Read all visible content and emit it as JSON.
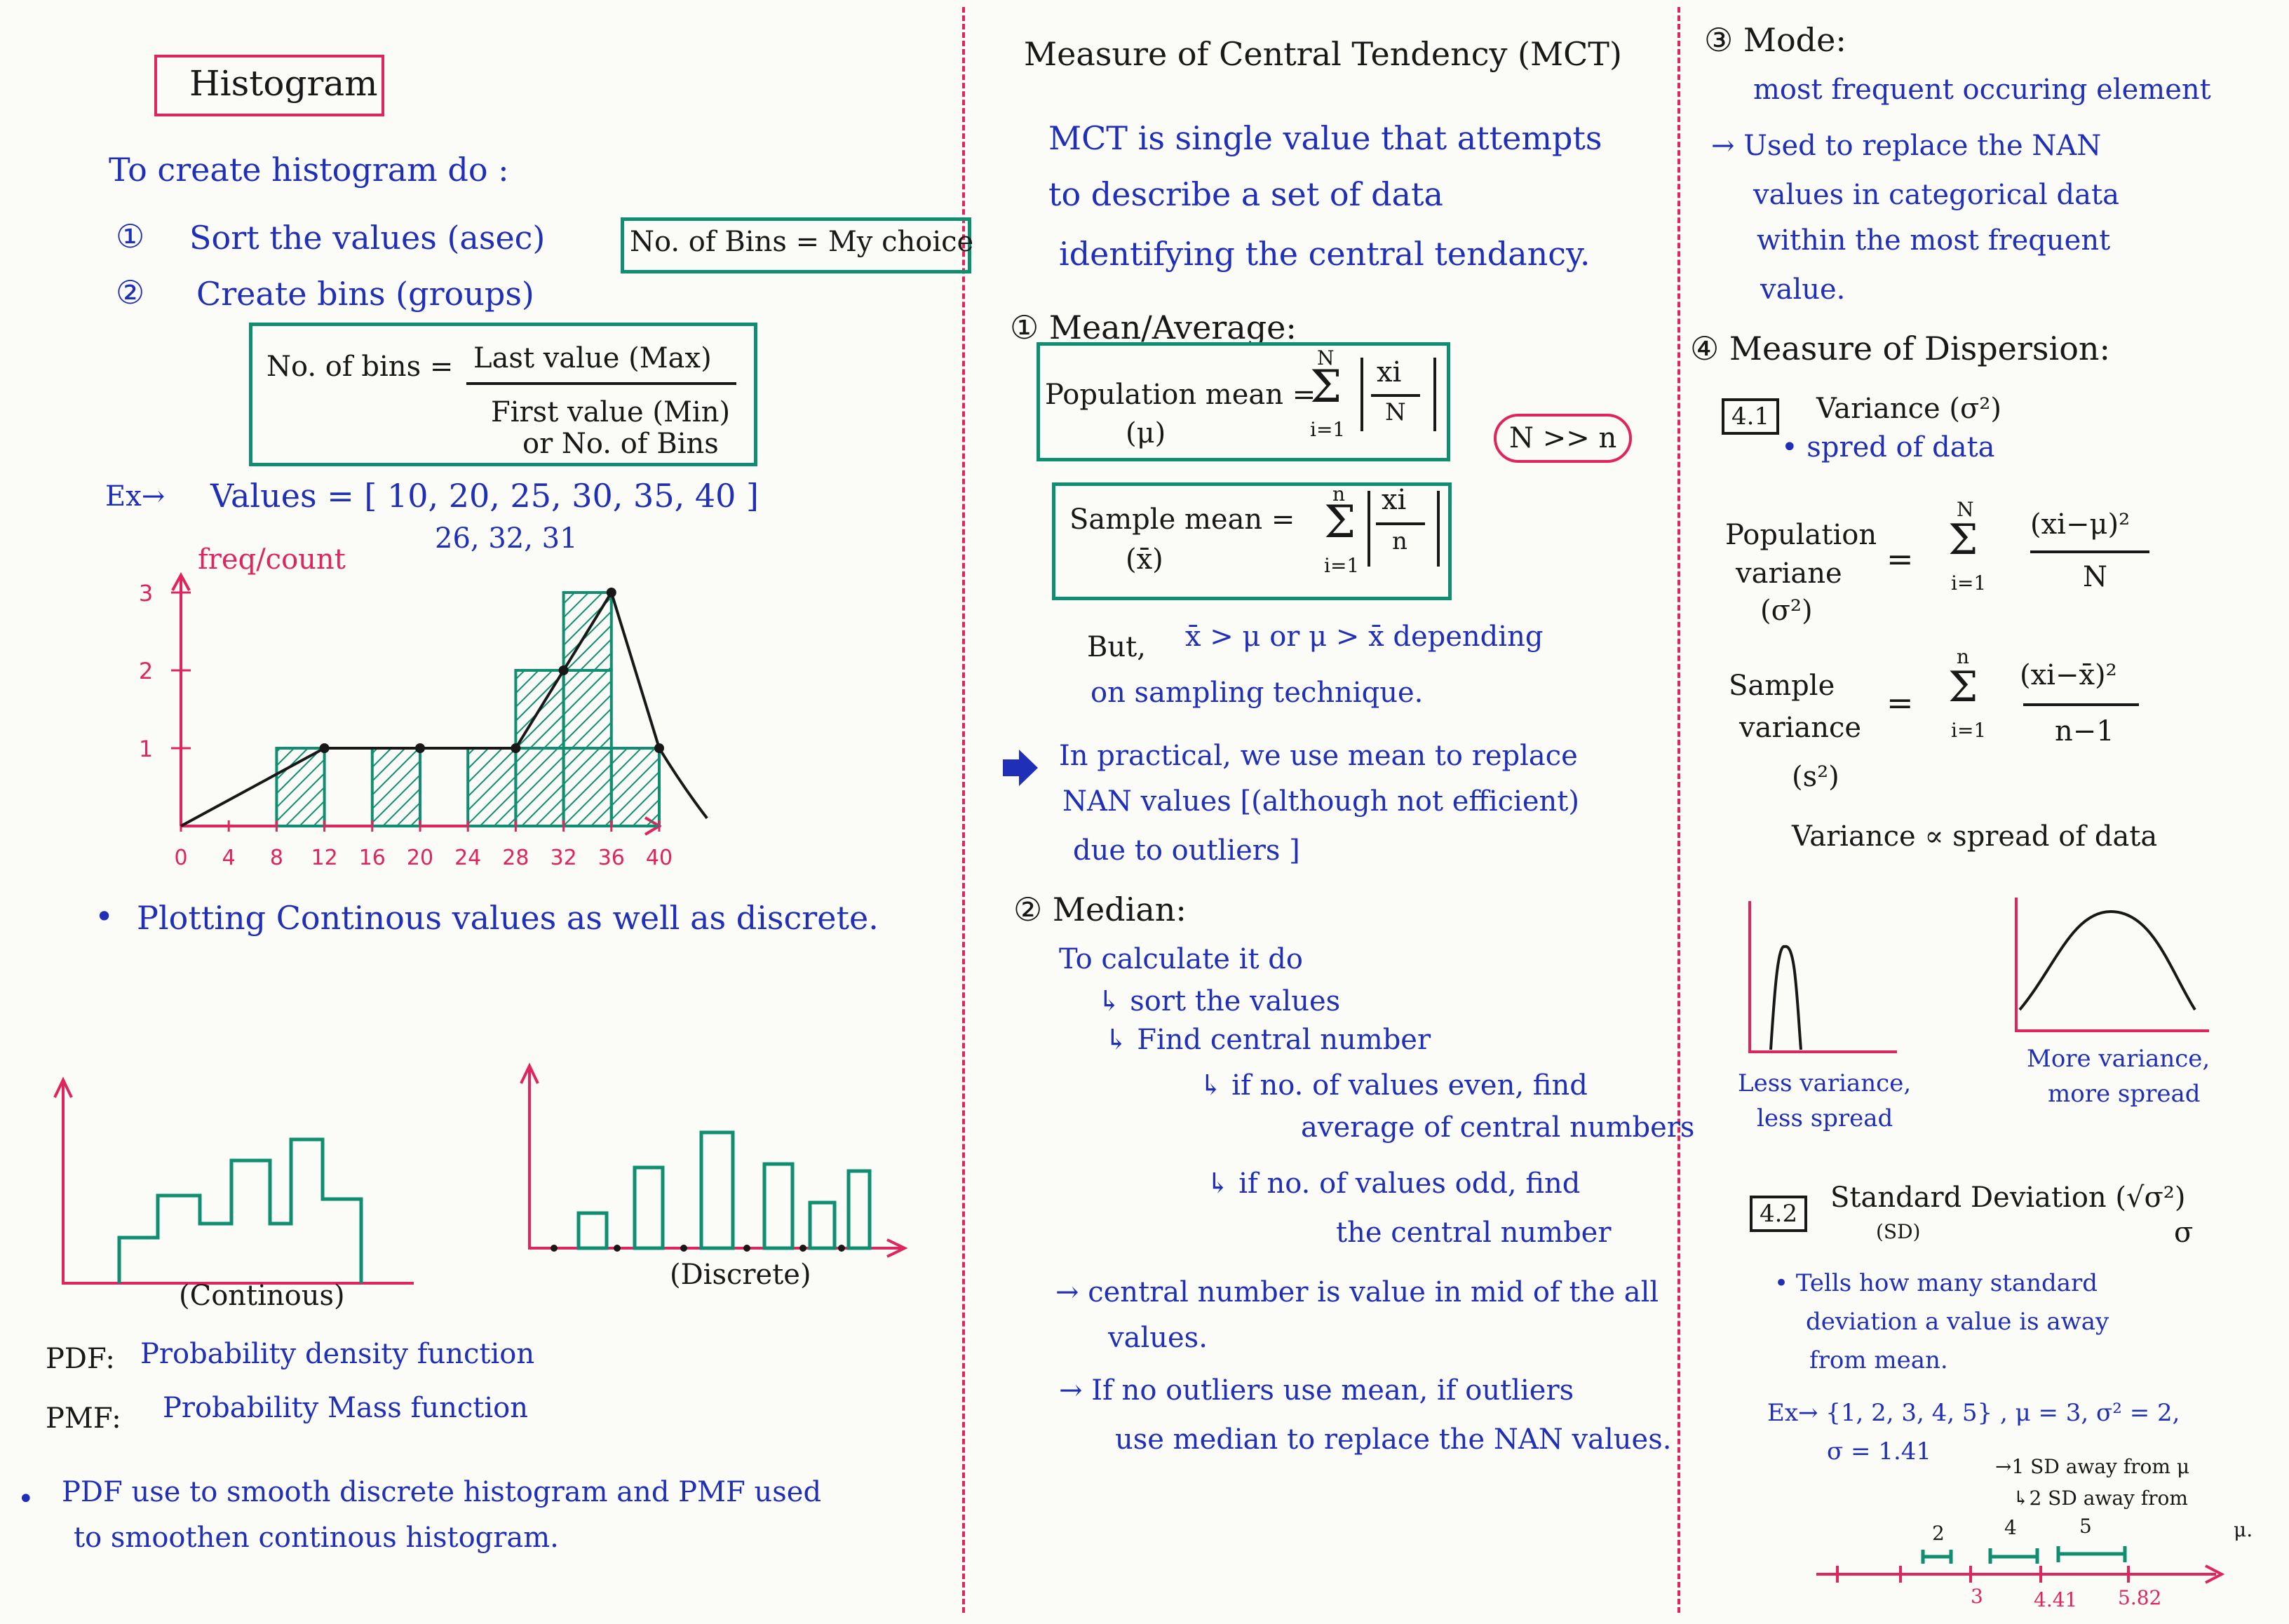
{
  "left": {
    "title": "Histogram",
    "intro": "To create histogram do :",
    "step1_num": "①",
    "step1": "Sort the values (asec)",
    "step2_num": "②",
    "step2": "Create bins (groups)",
    "bins_note": "No. of Bins = My choice",
    "formula_lhs": "No. of bins =",
    "formula_num": "Last value (Max)",
    "formula_den1": "First value (Min)",
    "formula_den2": "or No. of Bins",
    "example_prefix": "Ex→",
    "example_values": "Values = [ 10, 20, 25, 30, 35, 40 ]",
    "example_values2": "26, 32, 31",
    "chart_ylabel": "freq/count",
    "bullet": "•",
    "plotting_note": "Plotting Continous values as well as discrete.",
    "continuous_label": "(Continous)",
    "discrete_label": "(Discrete)",
    "pdf_key": "PDF:",
    "pdf_text": "Probability density function",
    "pmf_key": "PMF:",
    "pmf_text": "Probability Mass function",
    "note_line1": "PDF use to smooth discrete histogram and PMF used",
    "note_line2": "to smoothen continous histogram."
  },
  "chart_data": {
    "type": "bar",
    "x_ticks": [
      "0",
      "4",
      "8",
      "12",
      "16",
      "20",
      "24",
      "28",
      "32",
      "36",
      "40"
    ],
    "y_ticks": [
      "1",
      "2",
      "3"
    ],
    "bins": [
      {
        "start": 8,
        "end": 12,
        "count": 1
      },
      {
        "start": 16,
        "end": 20,
        "count": 1
      },
      {
        "start": 24,
        "end": 28,
        "count": 1
      },
      {
        "start": 28,
        "end": 32,
        "count": 2
      },
      {
        "start": 32,
        "end": 36,
        "count": 3
      },
      {
        "start": 36,
        "end": 40,
        "count": 1
      }
    ],
    "xlim": [
      0,
      40
    ],
    "ylim": [
      0,
      3
    ],
    "ylabel": "freq/count",
    "bar_color": "#0f8f6f"
  },
  "middle": {
    "title": "Measure of Central Tendency (MCT)",
    "def1": "MCT is single value that attempts",
    "def2": "to describe a set of data",
    "def3": "identifying the central tendancy.",
    "mean_heading": "① Mean/Average:",
    "pop_mean_label": "Population mean =",
    "pop_mean_sym": "(μ)",
    "pop_sum_top": "N",
    "pop_sum_bottom": "i=1",
    "pop_frac_num": "xi",
    "pop_frac_den": "N",
    "n_gg_n": "N >> n",
    "sample_mean_label": "Sample mean =",
    "sample_mean_sym": "(x̄)",
    "sample_sum_top": "n",
    "sample_sum_bottom": "i=1",
    "sample_frac_num": "xi",
    "sample_frac_den": "n",
    "sigma": "Σ",
    "but1_prefix": "But,",
    "but1": "x̄ > μ or μ > x̄ depending",
    "but2": "on sampling technique.",
    "practical1": "In practical, we use mean to replace",
    "practical2": "NAN values [(although not efficient)",
    "practical3": "due to outliers ]",
    "median_heading": "② Median:",
    "median_calc": "To calculate it do",
    "median_sort": "↳ sort the values",
    "median_find": "↳ Find central number",
    "median_even1": "↳ if no. of values even, find",
    "median_even2": "average of central numbers",
    "median_odd1": "↳ if no. of values odd, find",
    "median_odd2": "the central number",
    "central1": "→ central number is value in mid of the all",
    "central2": "values.",
    "outlier1": "→ If no outliers use mean, if outliers",
    "outlier2": "use median to replace the NAN values."
  },
  "right": {
    "mode_heading": "③ Mode:",
    "mode_def": "most frequent occuring element",
    "mode_use1": "→ Used to replace the NAN",
    "mode_use2": "values in categorical data",
    "mode_use3": "within the most frequent",
    "mode_use4": "value.",
    "dispersion_heading": "④ Measure of Dispersion:",
    "variance_tag": "4.1",
    "variance_label": "Variance (σ²)",
    "variance_def": "• spred of data",
    "pop_var_label1": "Population",
    "pop_var_label2": "variane",
    "pop_var_label3": "(σ²)",
    "equals": "=",
    "sigma": "Σ",
    "pop_var_sum_top": "N",
    "pop_var_sum_bottom": "i=1",
    "pop_var_num": "(xi−μ)²",
    "pop_var_den": "N",
    "sample_var_label1": "Sample",
    "sample_var_label2": "variance",
    "sample_var_label3": "(s²)",
    "sample_var_sum_top": "n",
    "sample_var_sum_bottom": "i=1",
    "sample_var_num": "(xi−x̄)²",
    "sample_var_den": "n−1",
    "variance_prop": "Variance ∝ spread of data",
    "less_var1": "Less variance,",
    "less_var2": "less spread",
    "more_var1": "More variance,",
    "more_var2": "more spread",
    "sd_tag": "4.2",
    "sd_label": "Standard Deviation (√σ²)",
    "sd_abbr": "(SD)",
    "sd_sym": "σ",
    "sd_def1": "• Tells how many standard",
    "sd_def2": "deviation a value is away",
    "sd_def3": "from mean.",
    "sd_example": "Ex→ {1, 2, 3, 4, 5} , μ = 3, σ² = 2,",
    "sd_example2": "σ = 1.41",
    "sd_note1": "→1 SD away from μ",
    "sd_note2": "↳2 SD away from",
    "sd_note3": "μ.",
    "nl_label_2": "2",
    "nl_label_4": "4",
    "nl_label_5": "5",
    "nl_tick_3": "3",
    "nl_tick_441": "4.41",
    "nl_tick_582": "5.82"
  },
  "colors": {
    "ink_blue": "#1f2fb8",
    "ink_black": "#181818",
    "ink_pink": "#e0245e",
    "ink_green": "#0f8f6f"
  }
}
